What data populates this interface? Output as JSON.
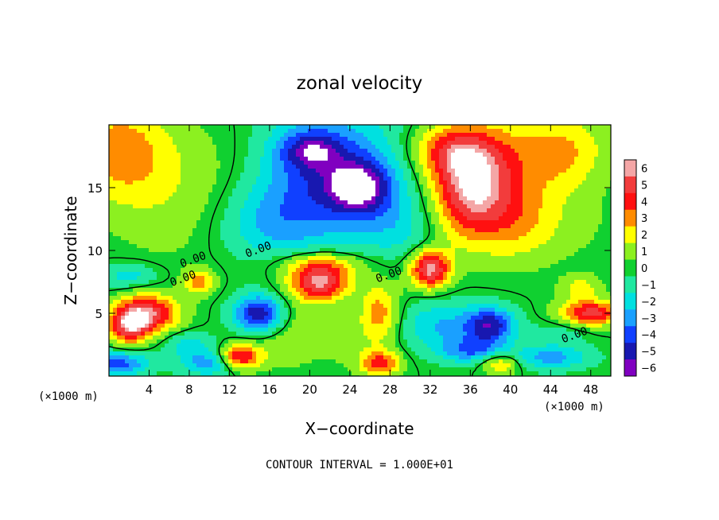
{
  "chart_data": {
    "type": "heatmap",
    "title": "zonal velocity",
    "xlabel": "X−coordinate",
    "ylabel": "Z−coordinate",
    "x_unit_label": "(×1000 m)",
    "z_unit_label": "(×1000 m)",
    "xlim": [
      0,
      50
    ],
    "zlim": [
      0,
      20
    ],
    "x_ticks": [
      4,
      8,
      12,
      16,
      20,
      24,
      28,
      32,
      36,
      40,
      44,
      48
    ],
    "z_ticks": [
      5,
      10,
      15
    ],
    "x_tick_labels": [
      "4",
      "8",
      "12",
      "16",
      "20",
      "24",
      "28",
      "32",
      "36",
      "40",
      "44",
      "48"
    ],
    "z_tick_labels": [
      "5",
      "10",
      "15"
    ],
    "colorbar": {
      "levels": [
        6,
        5,
        4,
        3,
        2,
        1,
        0,
        -1,
        -2,
        -3,
        -4,
        -5,
        -6
      ],
      "labels": [
        "6",
        "5",
        "4",
        "3",
        "2",
        "1",
        "0",
        "−1",
        "−2",
        "−3",
        "−4",
        "−5",
        "−6"
      ],
      "colors": [
        "#f4a6a6",
        "#f23c3c",
        "#ff1010",
        "#ff8c00",
        "#ffff00",
        "#8cf020",
        "#10d030",
        "#20e8a0",
        "#00e0e0",
        "#1aa0ff",
        "#1040ff",
        "#1818b0",
        "#8000c0"
      ],
      "saturated_color": "#ffffff"
    },
    "contour_labels": [
      {
        "text": "0.00",
        "x": 8.5,
        "z": 9.0
      },
      {
        "text": "0.00",
        "x": 7.5,
        "z": 7.5
      },
      {
        "text": "0.00",
        "x": 15.0,
        "z": 9.8
      },
      {
        "text": "0.00",
        "x": 28.0,
        "z": 7.8
      },
      {
        "text": "0.00",
        "x": 46.5,
        "z": 3.0
      }
    ],
    "blobs": [
      {
        "x": 1,
        "z": 18,
        "sx": 5,
        "sz": 4,
        "v": 3
      },
      {
        "x": 6,
        "z": 14,
        "sx": 6,
        "sz": 5,
        "v": 1
      },
      {
        "x": 12,
        "z": 17,
        "sx": 6,
        "sz": 4,
        "v": 0.5
      },
      {
        "x": 16,
        "z": 12,
        "sx": 5,
        "sz": 3,
        "v": -2
      },
      {
        "x": 22,
        "z": 16,
        "sx": 7,
        "sz": 5,
        "v": -4.5
      },
      {
        "x": 25,
        "z": 15,
        "sx": 3,
        "sz": 2,
        "v": -4
      },
      {
        "x": 20,
        "z": 18,
        "sx": 3,
        "sz": 1.5,
        "v": -3
      },
      {
        "x": 29,
        "z": 12,
        "sx": 4,
        "sz": 3,
        "v": -1.5
      },
      {
        "x": 36,
        "z": 15,
        "sx": 4,
        "sz": 4,
        "v": 6
      },
      {
        "x": 34,
        "z": 18,
        "sx": 4,
        "sz": 2,
        "v": 3
      },
      {
        "x": 41,
        "z": 17,
        "sx": 5,
        "sz": 4,
        "v": 2
      },
      {
        "x": 46,
        "z": 18,
        "sx": 4,
        "sz": 3,
        "v": 2
      },
      {
        "x": 41,
        "z": 12,
        "sx": 4,
        "sz": 3,
        "v": 2
      },
      {
        "x": 47,
        "z": 12,
        "sx": 4,
        "sz": 3,
        "v": 0.5
      },
      {
        "x": 32,
        "z": 8.5,
        "sx": 2,
        "sz": 1.5,
        "v": 6
      },
      {
        "x": 21,
        "z": 7.5,
        "sx": 3,
        "sz": 1.5,
        "v": 6
      },
      {
        "x": 21,
        "z": 9,
        "sx": 5,
        "sz": 1,
        "v": 2
      },
      {
        "x": 15,
        "z": 5,
        "sx": 2.5,
        "sz": 1.5,
        "v": -6
      },
      {
        "x": 16,
        "z": 5,
        "sx": 2.5,
        "sz": 2,
        "v": 1
      },
      {
        "x": 4,
        "z": 5,
        "sx": 3,
        "sz": 1.5,
        "v": 5
      },
      {
        "x": 2,
        "z": 4,
        "sx": 2,
        "sz": 1.5,
        "v": 5
      },
      {
        "x": 9,
        "z": 7.5,
        "sx": 1.5,
        "sz": 1,
        "v": 3
      },
      {
        "x": 2,
        "z": 8,
        "sx": 3,
        "sz": 1,
        "v": -2
      },
      {
        "x": 8,
        "z": 2.5,
        "sx": 2.5,
        "sz": 1,
        "v": -2
      },
      {
        "x": 1,
        "z": 1,
        "sx": 3,
        "sz": 1,
        "v": -4
      },
      {
        "x": 10,
        "z": 1,
        "sx": 3,
        "sz": 1,
        "v": -3
      },
      {
        "x": 13,
        "z": 1.5,
        "sx": 2,
        "sz": 1,
        "v": 5
      },
      {
        "x": 17,
        "z": 2,
        "sx": 3,
        "sz": 1.5,
        "v": 1
      },
      {
        "x": 19,
        "z": 4,
        "sx": 2,
        "sz": 2,
        "v": 1
      },
      {
        "x": 23,
        "z": 3,
        "sx": 3,
        "sz": 2,
        "v": 1
      },
      {
        "x": 27,
        "z": 5,
        "sx": 2,
        "sz": 2.5,
        "v": 3
      },
      {
        "x": 27,
        "z": 1,
        "sx": 2,
        "sz": 1,
        "v": 4
      },
      {
        "x": 33,
        "z": 4,
        "sx": 4,
        "sz": 2,
        "v": -2.5
      },
      {
        "x": 38,
        "z": 4,
        "sx": 2.5,
        "sz": 1.5,
        "v": -5
      },
      {
        "x": 36,
        "z": 2,
        "sx": 3,
        "sz": 1,
        "v": -3
      },
      {
        "x": 44,
        "z": 1.5,
        "sx": 4,
        "sz": 1,
        "v": -3
      },
      {
        "x": 48,
        "z": 5,
        "sx": 3,
        "sz": 1,
        "v": 5
      },
      {
        "x": 47,
        "z": 7,
        "sx": 2,
        "sz": 1,
        "v": 2
      },
      {
        "x": 45,
        "z": 3.5,
        "sx": 3,
        "sz": 1,
        "v": -1
      },
      {
        "x": 39,
        "z": 1,
        "sx": 2,
        "sz": 0.8,
        "v": 3
      }
    ]
  }
}
